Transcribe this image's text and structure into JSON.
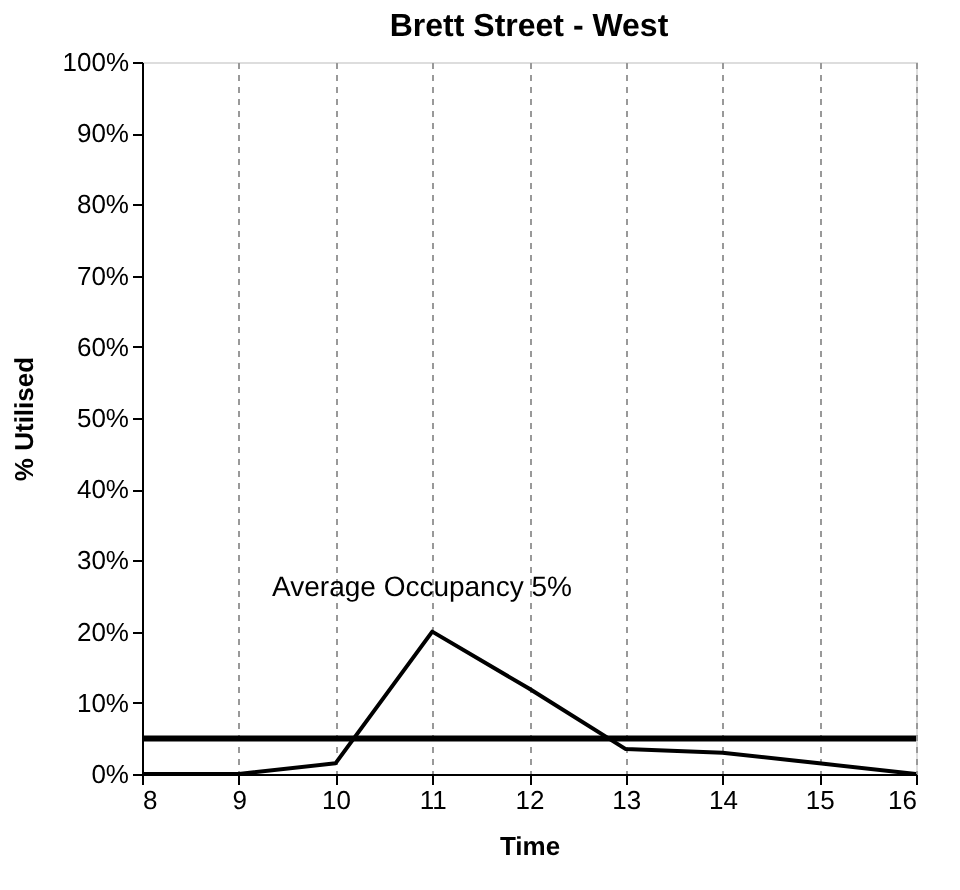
{
  "chart_data": {
    "type": "line",
    "title": "Brett Street - West",
    "xlabel": "Time",
    "ylabel": "% Utilised",
    "x": [
      8,
      9,
      10,
      11,
      12,
      13,
      14,
      15,
      16
    ],
    "series": [
      {
        "color": "#000000",
        "values": [
          0,
          0,
          1.5,
          20,
          12,
          3.5,
          3,
          1.5,
          0
        ]
      }
    ],
    "xlim": [
      8,
      16
    ],
    "xticks": [
      8,
      9,
      10,
      11,
      12,
      13,
      14,
      15,
      16
    ],
    "ylim": [
      0,
      100
    ],
    "yticks": [
      {
        "value": 0,
        "label": "0%"
      },
      {
        "value": 10,
        "label": "10%"
      },
      {
        "value": 20,
        "label": "20%"
      },
      {
        "value": 30,
        "label": "30%"
      },
      {
        "value": 40,
        "label": "40%"
      },
      {
        "value": 50,
        "label": "50%"
      },
      {
        "value": 60,
        "label": "60%"
      },
      {
        "value": 70,
        "label": "70%"
      },
      {
        "value": 80,
        "label": "80%"
      },
      {
        "value": 90,
        "label": "90%"
      },
      {
        "value": 100,
        "label": "100%"
      }
    ],
    "ref_lines": [
      {
        "axis": "y",
        "value": 5,
        "label": "Average Occupancy 5%",
        "color": "#000000"
      }
    ],
    "grid": "x",
    "marker": "none",
    "line_style": "solid"
  }
}
